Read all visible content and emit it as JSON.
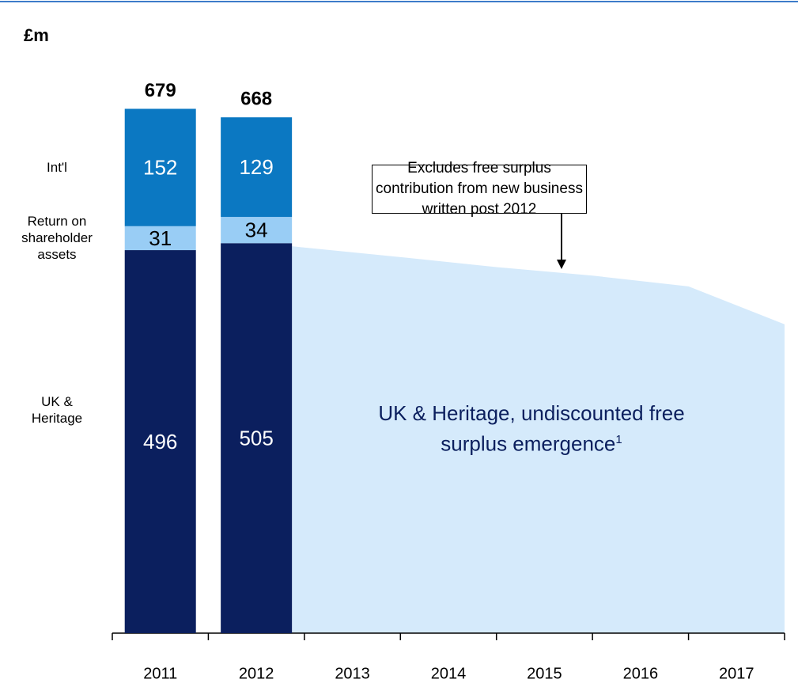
{
  "chart_data": {
    "type": "bar",
    "stacked": true,
    "unit_label": "£m",
    "categories": [
      "2011",
      "2012",
      "2013",
      "2014",
      "2015",
      "2016",
      "2017"
    ],
    "series": [
      {
        "name": "UK & Heritage",
        "color": "#0b1f5e",
        "label_color": "#ffffff",
        "values": [
          496,
          505,
          null,
          null,
          null,
          null,
          null
        ]
      },
      {
        "name": "Return on shareholder assets",
        "color": "#99cdf5",
        "label_color": "#000000",
        "values": [
          31,
          34,
          null,
          null,
          null,
          null,
          null
        ]
      },
      {
        "name": "Int'l",
        "color": "#0b78c2",
        "label_color": "#ffffff",
        "values": [
          152,
          129,
          null,
          null,
          null,
          null,
          null
        ]
      }
    ],
    "totals": [
      679,
      668,
      null,
      null,
      null,
      null,
      null
    ],
    "area": {
      "type": "area",
      "name": "UK & Heritage, undiscounted free surplus emergence",
      "footnote": "1",
      "color": "#d5eafb",
      "values": [
        null,
        501,
        487,
        474,
        463,
        449,
        400
      ]
    },
    "annotation": "Excludes free surplus contribution from new business written post 2012",
    "ylim": [
      0,
      700
    ]
  }
}
